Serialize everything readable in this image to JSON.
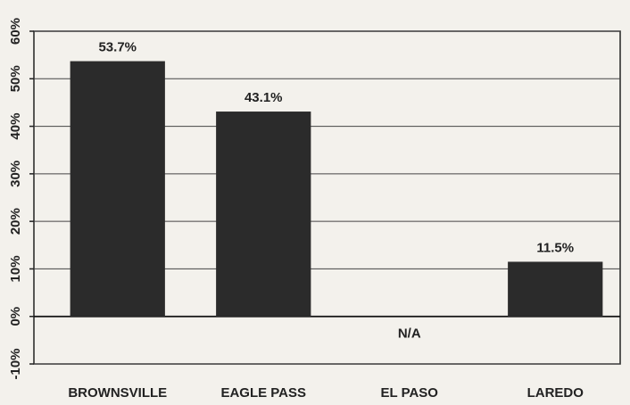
{
  "chart_data": {
    "type": "bar",
    "categories": [
      "BROWNSVILLE",
      "EAGLE PASS",
      "EL PASO",
      "LAREDO"
    ],
    "values": [
      53.7,
      43.1,
      null,
      11.5
    ],
    "value_labels": [
      "53.7%",
      "43.1%",
      "N/A",
      "11.5%"
    ],
    "color": "#2b2b2b",
    "ylim": [
      -10,
      60
    ],
    "yticks": [
      {
        "value": -10,
        "label": "-10%"
      },
      {
        "value": 0,
        "label": "0%"
      },
      {
        "value": 10,
        "label": "10%"
      },
      {
        "value": 20,
        "label": "20%"
      },
      {
        "value": 30,
        "label": "30%"
      },
      {
        "value": 40,
        "label": "40%"
      },
      {
        "value": 50,
        "label": "50%"
      },
      {
        "value": 60,
        "label": "60%"
      }
    ],
    "grid": true
  }
}
